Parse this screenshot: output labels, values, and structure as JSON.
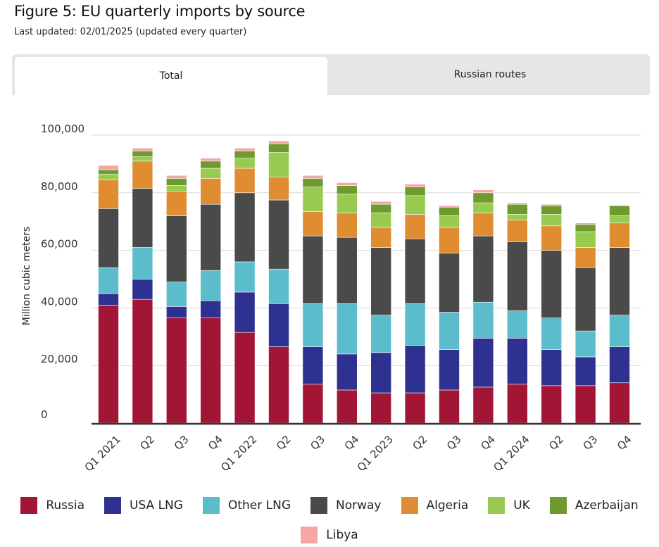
{
  "header": {
    "title": "Figure 5: EU quarterly imports by source",
    "subtitle": "Last updated: 02/01/2025 (updated every quarter)"
  },
  "tabs": [
    {
      "label": "Total",
      "active": true
    },
    {
      "label": "Russian routes",
      "active": false
    }
  ],
  "colors": {
    "Russia": "#a31535",
    "USA LNG": "#2e3190",
    "Other LNG": "#5bbccc",
    "Norway": "#4a4a4a",
    "Algeria": "#e08c30",
    "UK": "#96cb4f",
    "Azerbaijan": "#6e9a2e",
    "Libya": "#f5a5a5"
  },
  "chart_data": {
    "type": "bar",
    "stacked": true,
    "categories": [
      "Q1 2021",
      "Q2",
      "Q3",
      "Q4",
      "Q1 2022",
      "Q2",
      "Q3",
      "Q4",
      "Q1 2023",
      "Q2",
      "Q3",
      "Q4",
      "Q1 2024",
      "Q2",
      "Q3",
      "Q4"
    ],
    "ylabel": "Million cubic meters",
    "ylim": [
      0,
      100000
    ],
    "yticks": [
      0,
      20000,
      40000,
      60000,
      80000,
      100000
    ],
    "ytick_labels": [
      "0",
      "20,000",
      "40,000",
      "60,000",
      "80,000",
      "100,000"
    ],
    "grid": true,
    "legend_position": "bottom",
    "series": [
      {
        "name": "Russia",
        "values": [
          41000,
          43000,
          36500,
          36500,
          31500,
          26500,
          13500,
          11500,
          10500,
          10500,
          11500,
          12500,
          13500,
          13000,
          13000,
          14000
        ]
      },
      {
        "name": "USA LNG",
        "values": [
          4000,
          7000,
          4000,
          6000,
          14000,
          15000,
          13000,
          12500,
          14000,
          16500,
          14000,
          17000,
          16000,
          12500,
          10000,
          12500
        ]
      },
      {
        "name": "Other LNG",
        "values": [
          9000,
          11000,
          8500,
          10500,
          10500,
          12000,
          15000,
          17500,
          13000,
          14500,
          13000,
          12500,
          9500,
          11000,
          9000,
          11000
        ]
      },
      {
        "name": "Norway",
        "values": [
          20500,
          20500,
          23000,
          23000,
          24000,
          24000,
          23500,
          23000,
          23500,
          22500,
          20500,
          23000,
          24000,
          23500,
          22000,
          23500
        ]
      },
      {
        "name": "Algeria",
        "values": [
          10000,
          9500,
          8500,
          9000,
          8500,
          8000,
          8500,
          8500,
          7000,
          8500,
          9000,
          8000,
          7500,
          8500,
          7000,
          8500
        ]
      },
      {
        "name": "UK",
        "values": [
          2000,
          1500,
          2000,
          3500,
          3500,
          8500,
          8500,
          6500,
          5000,
          6500,
          4000,
          3500,
          2000,
          4000,
          5500,
          2500
        ]
      },
      {
        "name": "Azerbaijan",
        "values": [
          1500,
          2000,
          2500,
          2500,
          2500,
          3000,
          3000,
          3000,
          3000,
          3000,
          3000,
          3500,
          3500,
          3000,
          2500,
          3500
        ]
      },
      {
        "name": "Libya",
        "values": [
          1500,
          1000,
          1000,
          1000,
          1000,
          1000,
          1000,
          1000,
          1000,
          1000,
          500,
          1000,
          500,
          500,
          500,
          0
        ]
      }
    ]
  }
}
